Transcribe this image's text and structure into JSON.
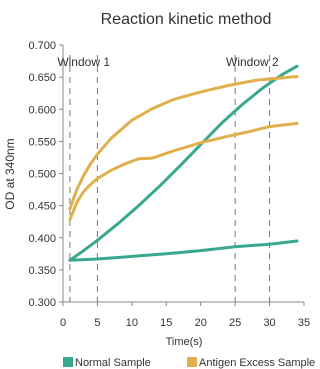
{
  "chart_data": {
    "type": "line",
    "title": "Reaction kinetic method",
    "xlabel": "Time(s)",
    "ylabel": "OD at 340nm",
    "xlim": [
      0,
      35
    ],
    "ylim": [
      0.3,
      0.7
    ],
    "x_ticks": [
      0,
      5,
      10,
      15,
      20,
      25,
      30,
      35
    ],
    "y_ticks": [
      0.3,
      0.35,
      0.4,
      0.45,
      0.5,
      0.55,
      0.6,
      0.65,
      0.7
    ],
    "x_tick_labels": [
      "0",
      "5",
      "10",
      "15",
      "20",
      "25",
      "30",
      "35"
    ],
    "y_tick_labels": [
      "0.300",
      "0.350",
      "0.400",
      "0.450",
      "0.500",
      "0.550",
      "0.600",
      "0.650",
      "0.700"
    ],
    "grid": false,
    "legend_position": "bottom",
    "windows": [
      {
        "label": "Window 1",
        "lines_x": [
          1,
          5
        ]
      },
      {
        "label": "Window 2",
        "lines_x": [
          25,
          30
        ]
      }
    ],
    "series": [
      {
        "name": "Normal Sample",
        "color": "#3aa88f",
        "lines": [
          {
            "x": [
              1,
              3,
              5,
              8,
              11,
              14,
              17,
              20,
              23,
              26,
              29,
              32,
              34
            ],
            "y": [
              0.365,
              0.38,
              0.396,
              0.422,
              0.45,
              0.48,
              0.512,
              0.545,
              0.578,
              0.607,
              0.633,
              0.655,
              0.667
            ]
          },
          {
            "x": [
              1,
              5,
              10,
              15,
              20,
              25,
              30,
              34
            ],
            "y": [
              0.365,
              0.367,
              0.371,
              0.375,
              0.38,
              0.386,
              0.39,
              0.395
            ]
          }
        ]
      },
      {
        "name": "Antigen Excess Sample",
        "color": "#e0b04c",
        "lines": [
          {
            "x": [
              1,
              2,
              3,
              4,
              5,
              7,
              10,
              13,
              16,
              20,
              24,
              28,
              31,
              34
            ],
            "y": [
              0.445,
              0.475,
              0.497,
              0.515,
              0.53,
              0.555,
              0.583,
              0.601,
              0.615,
              0.627,
              0.637,
              0.645,
              0.648,
              0.651
            ]
          },
          {
            "x": [
              1,
              2,
              3,
              4,
              5,
              7,
              9,
              11,
              13,
              16,
              20,
              24,
              27,
              30,
              34
            ],
            "y": [
              0.428,
              0.455,
              0.472,
              0.483,
              0.492,
              0.505,
              0.515,
              0.523,
              0.524,
              0.535,
              0.548,
              0.558,
              0.565,
              0.573,
              0.578
            ]
          }
        ]
      }
    ]
  }
}
